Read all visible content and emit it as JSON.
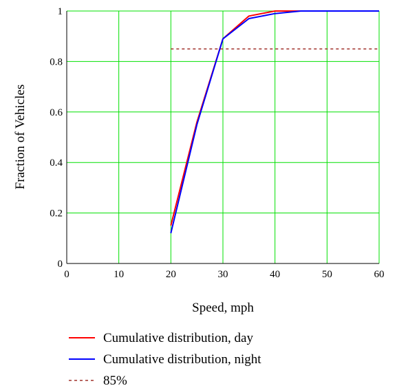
{
  "chart_data": {
    "type": "line",
    "xlabel": "Speed, mph",
    "ylabel": "Fraction of Vehicles",
    "xlim": [
      0,
      60
    ],
    "ylim": [
      0,
      1
    ],
    "x_ticks": [
      0,
      10,
      20,
      30,
      40,
      50,
      60
    ],
    "y_ticks": [
      0,
      0.2,
      0.4,
      0.6,
      0.8,
      1
    ],
    "x_tick_labels": [
      "0",
      "10",
      "20",
      "30",
      "40",
      "50",
      "60"
    ],
    "y_tick_labels": [
      "0",
      "0.2",
      "0.4",
      "0.6",
      "0.8",
      "1"
    ],
    "grid": true,
    "grid_color": "#00e000",
    "legend_position": "below",
    "series": [
      {
        "name": "Cumulative distribution, day",
        "color": "#ff0000",
        "style": "solid",
        "x": [
          20,
          25,
          30,
          35,
          40,
          45,
          60
        ],
        "y": [
          0.15,
          0.56,
          0.89,
          0.98,
          1.0,
          1.0,
          1.0
        ]
      },
      {
        "name": "Cumulative distribution, night",
        "color": "#0000ff",
        "style": "solid",
        "x": [
          20,
          25,
          30,
          35,
          40,
          45,
          60
        ],
        "y": [
          0.12,
          0.55,
          0.89,
          0.97,
          0.99,
          1.0,
          1.0
        ]
      },
      {
        "name": "85%",
        "color": "#a0302a",
        "style": "dashed",
        "x": [
          20,
          60
        ],
        "y": [
          0.85,
          0.85
        ]
      }
    ]
  }
}
